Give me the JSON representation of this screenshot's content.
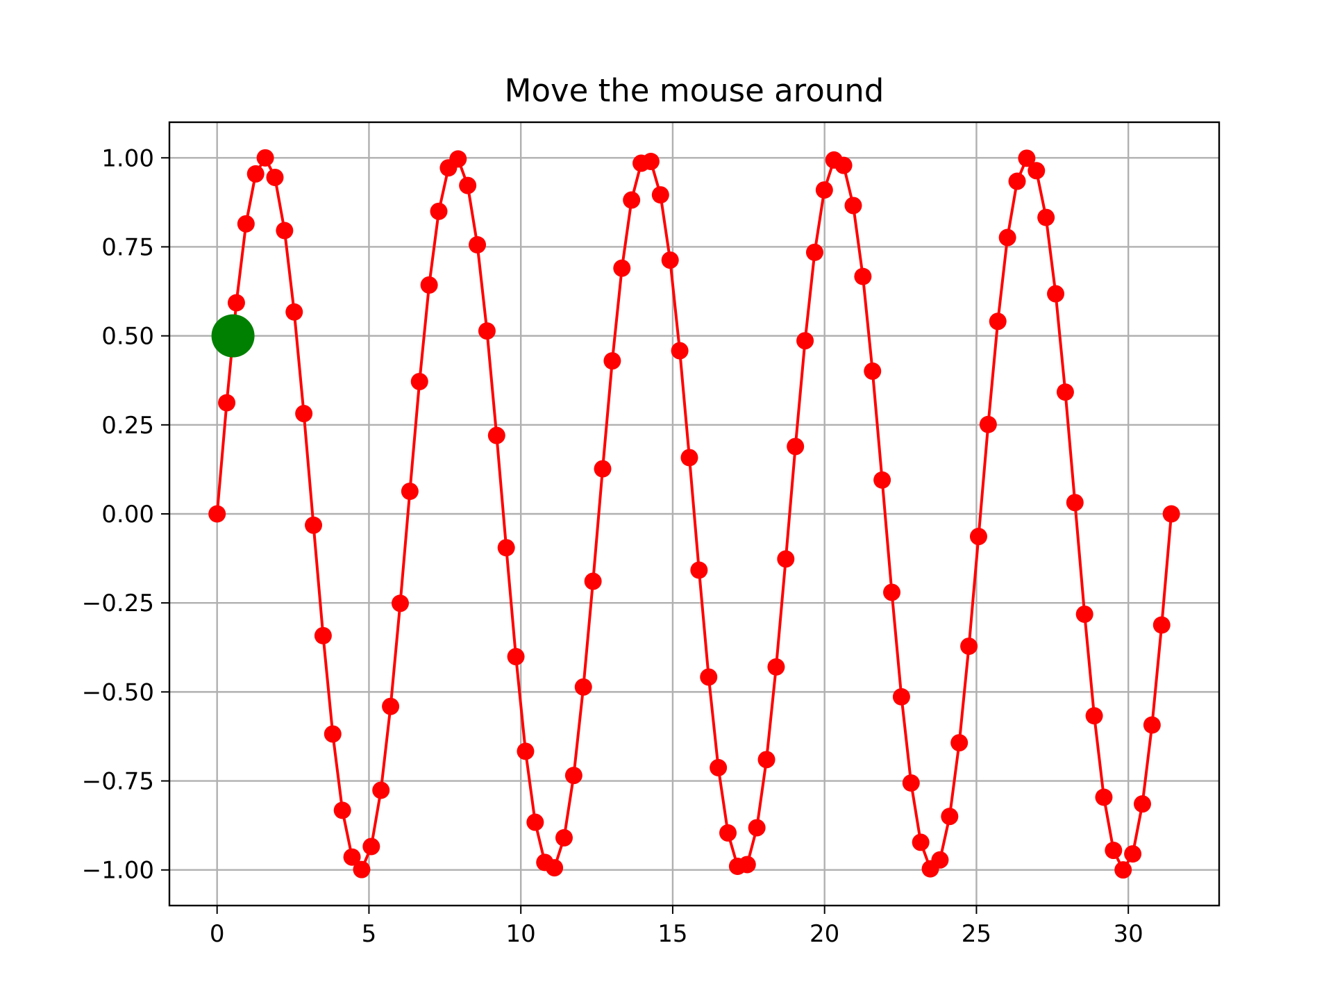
{
  "chart_data": {
    "type": "line",
    "title": "Move the mouse around",
    "xlabel": "",
    "ylabel": "",
    "xlim": [
      -1.57,
      32.99
    ],
    "ylim": [
      -1.1,
      1.1
    ],
    "x_ticks": [
      0,
      5,
      10,
      15,
      20,
      25,
      30
    ],
    "x_tick_labels": [
      "0",
      "5",
      "10",
      "15",
      "20",
      "25",
      "30"
    ],
    "y_ticks": [
      1.0,
      0.75,
      0.5,
      0.25,
      0.0,
      -0.25,
      -0.5,
      -0.75,
      -1.0
    ],
    "y_tick_labels": [
      "1.00",
      "0.75",
      "0.50",
      "0.25",
      "0.00",
      "−0.25",
      "−0.50",
      "−0.75",
      "−1.00"
    ],
    "grid": true,
    "series": [
      {
        "x_start": 0,
        "x_end": 31.4159,
        "num_points": 100,
        "function": "sin(x)",
        "color": "#ff0000",
        "marker": "circle"
      }
    ],
    "highlight_point": {
      "x": 0.5236,
      "y": 0.5,
      "color": "#008000"
    }
  }
}
